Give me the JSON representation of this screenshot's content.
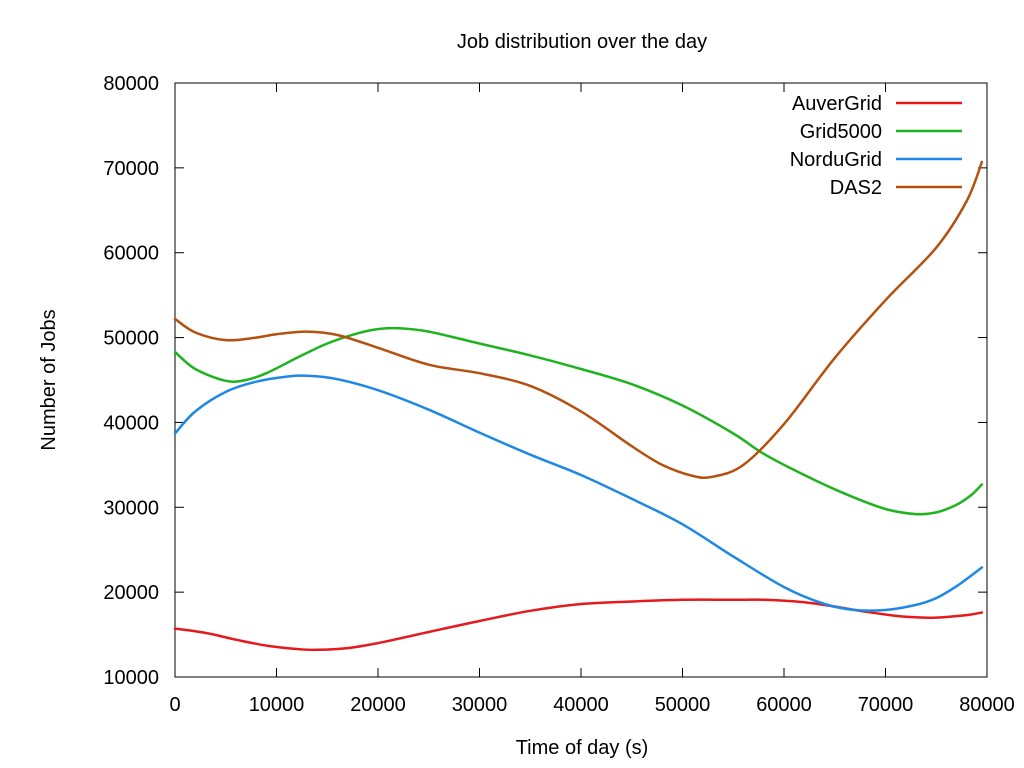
{
  "chart_data": {
    "type": "line",
    "title": "Job distribution over the day",
    "xlabel": "Time of day (s)",
    "ylabel": "Number of Jobs",
    "xlim": [
      0,
      80000
    ],
    "ylim": [
      10000,
      80000
    ],
    "xticks": [
      0,
      10000,
      20000,
      30000,
      40000,
      50000,
      60000,
      70000,
      80000
    ],
    "yticks": [
      10000,
      20000,
      30000,
      40000,
      50000,
      60000,
      70000,
      80000
    ],
    "grid": false,
    "legend_position": "top-right",
    "series": [
      {
        "name": "AuverGrid",
        "color": "#e41a1c",
        "x": [
          0,
          3000,
          6000,
          9000,
          12000,
          14000,
          17000,
          20000,
          25000,
          30000,
          35000,
          40000,
          45000,
          50000,
          55000,
          58000,
          62000,
          65000,
          68000,
          72000,
          75000,
          78000,
          79500
        ],
        "y": [
          15700,
          15200,
          14400,
          13700,
          13300,
          13200,
          13400,
          14000,
          15300,
          16600,
          17800,
          18600,
          18900,
          19100,
          19100,
          19100,
          18800,
          18300,
          17700,
          17100,
          17000,
          17300,
          17600
        ]
      },
      {
        "name": "Grid5000",
        "color": "#1fb31f",
        "x": [
          0,
          2000,
          5000,
          7000,
          9000,
          12000,
          15000,
          18000,
          20000,
          22000,
          25000,
          30000,
          35000,
          40000,
          45000,
          50000,
          55000,
          58000,
          62000,
          66000,
          70000,
          73000,
          75000,
          77000,
          78500,
          79500
        ],
        "y": [
          48300,
          46300,
          44900,
          45000,
          45800,
          47600,
          49300,
          50500,
          51000,
          51100,
          50700,
          49300,
          47900,
          46300,
          44500,
          42000,
          38700,
          36300,
          33800,
          31600,
          29800,
          29200,
          29400,
          30300,
          31500,
          32700
        ]
      },
      {
        "name": "NorduGrid",
        "color": "#1e88e5",
        "x": [
          0,
          2000,
          5000,
          8000,
          11000,
          13000,
          16000,
          20000,
          25000,
          30000,
          35000,
          40000,
          45000,
          50000,
          55000,
          60000,
          64000,
          67000,
          70000,
          73000,
          75000,
          77000,
          79500
        ],
        "y": [
          38700,
          41300,
          43600,
          44800,
          45400,
          45500,
          45100,
          43800,
          41500,
          38800,
          36200,
          33800,
          31000,
          28000,
          24200,
          20600,
          18600,
          17900,
          17900,
          18500,
          19300,
          20700,
          22900
        ]
      },
      {
        "name": "DAS2",
        "color": "#b5510f",
        "x": [
          0,
          2000,
          5000,
          8000,
          10000,
          13000,
          16000,
          20000,
          25000,
          30000,
          35000,
          40000,
          45000,
          48000,
          51000,
          53000,
          56000,
          60000,
          65000,
          70000,
          75000,
          78000,
          79500
        ],
        "y": [
          52200,
          50600,
          49700,
          50000,
          50400,
          50700,
          50300,
          48800,
          46800,
          45800,
          44300,
          41300,
          37200,
          35000,
          33700,
          33600,
          35000,
          39800,
          47600,
          54400,
          60600,
          66100,
          70700
        ]
      }
    ]
  }
}
